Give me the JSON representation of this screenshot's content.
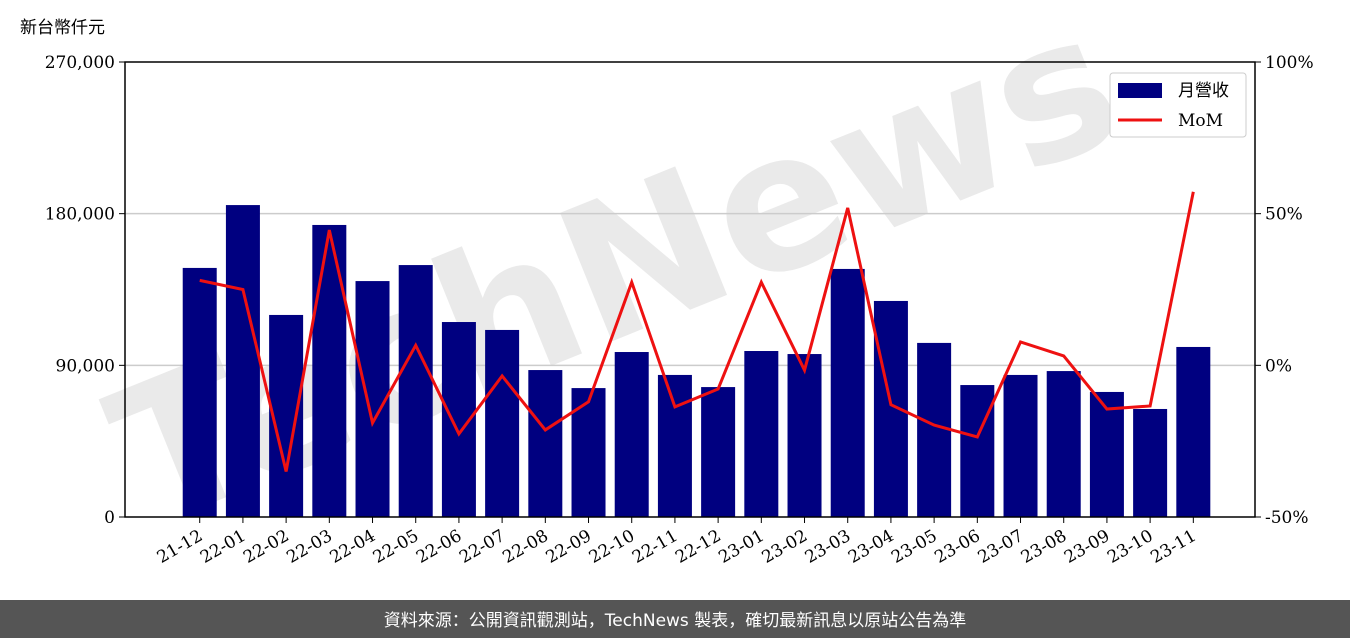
{
  "chart_data": {
    "type": "bar",
    "y_label": "新台幣仟元",
    "categories": [
      "21-12",
      "22-01",
      "22-02",
      "22-03",
      "22-04",
      "22-05",
      "22-06",
      "22-07",
      "22-08",
      "22-09",
      "22-10",
      "22-11",
      "22-12",
      "23-01",
      "23-02",
      "23-03",
      "23-04",
      "23-05",
      "23-06",
      "23-07",
      "23-08",
      "23-09",
      "23-10",
      "23-11"
    ],
    "series": [
      {
        "name": "月營收",
        "color": "#000080",
        "type": "bar",
        "values": [
          147800,
          185100,
          119900,
          173300,
          140000,
          149500,
          115700,
          111000,
          87200,
          76500,
          97900,
          84300,
          77100,
          98500,
          96700,
          147200,
          128200,
          103300,
          78300,
          84300,
          86600,
          74200,
          64100,
          100900
        ]
      },
      {
        "name": "MoM",
        "color": "#ee1111",
        "type": "line",
        "axis": "y2",
        "values": [
          28,
          25,
          -35,
          44.6,
          -19,
          6.6,
          -22.6,
          -3.5,
          -21.3,
          -12,
          27.4,
          -13.7,
          -7.8,
          27.4,
          -1.6,
          51.9,
          -13,
          -19.7,
          -23.6,
          7.7,
          3.1,
          -14.4,
          -13.4,
          57.2
        ]
      }
    ],
    "ylim": [
      0,
      270000
    ],
    "yticks": [
      0,
      {
        "value": 90000,
        "label": "90,000"
      },
      {
        "value": 180000,
        "label": "180,000"
      },
      {
        "value": 270000,
        "label": "270,000"
      }
    ],
    "y2lim": [
      -50,
      100
    ],
    "y2ticks": [
      {
        "value": -50,
        "label": "-50%"
      },
      {
        "value": 0,
        "label": "0%"
      },
      {
        "value": 50,
        "label": "50%"
      },
      {
        "value": 100,
        "label": "100%"
      }
    ],
    "grid": true,
    "legend": "upper right",
    "watermark": "TechNews"
  },
  "footer": "資料來源：公開資訊觀測站，TechNews 製表，確切最新訊息以原站公告為準"
}
